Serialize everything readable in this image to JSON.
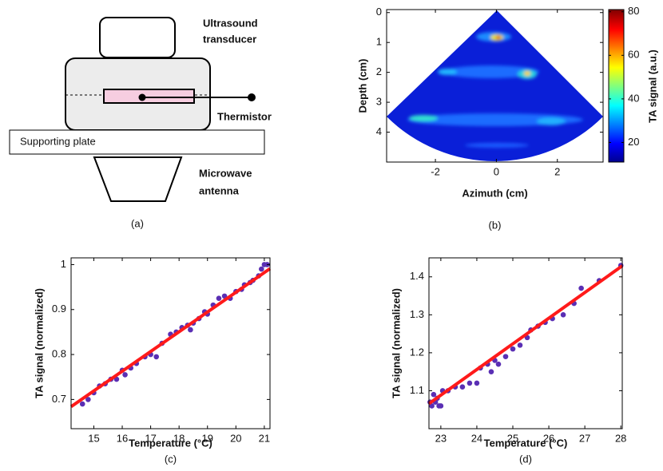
{
  "diagram": {
    "transducer_label": [
      "Ultrasound",
      "transducer"
    ],
    "thermistor_label": "Thermistor",
    "plate_label": "Supporting plate",
    "antenna_label": [
      "Microwave",
      "antenna"
    ],
    "caption": "(a)"
  },
  "chart_data": [
    {
      "type": "image",
      "xlabel": "Azimuth (cm)",
      "ylabel": "Depth (cm)",
      "caption": "(b)",
      "xlim": [
        -3.6,
        3.5
      ],
      "xticks": [
        -2,
        0,
        2
      ],
      "ylim": [
        -0.1,
        5
      ],
      "yticks": [
        0,
        1,
        2,
        3,
        4
      ],
      "y_reversed": true,
      "colorbar_label": "TA signal (a.u.)",
      "clim": [
        11,
        81
      ],
      "cticks": [
        20,
        40,
        60,
        80
      ],
      "colormap": "jet"
    },
    {
      "type": "scatter",
      "xlabel": "Temperature (°C)",
      "ylabel": "TA signal (normalized)",
      "caption": "(c)",
      "xlim": [
        14.2,
        21.2
      ],
      "xticks": [
        15,
        16,
        17,
        18,
        19,
        20,
        21
      ],
      "ylim": [
        0.635,
        1.015
      ],
      "yticks": [
        0.7,
        0.8,
        0.9,
        1
      ],
      "series": [
        {
          "mode": "markers",
          "color": "#5a2fb4",
          "x": [
            14.6,
            14.8,
            15.0,
            15.2,
            15.4,
            15.6,
            15.8,
            16.0,
            16.1,
            16.3,
            16.5,
            16.8,
            17.0,
            17.2,
            17.4,
            17.7,
            17.9,
            18.1,
            18.3,
            18.4,
            18.5,
            18.7,
            18.9,
            19.0,
            19.2,
            19.4,
            19.6,
            19.8,
            20.0,
            20.2,
            20.3,
            20.5,
            20.6,
            20.8,
            20.9,
            21.0,
            21.1
          ],
          "values": [
            0.69,
            0.7,
            0.715,
            0.73,
            0.735,
            0.745,
            0.745,
            0.765,
            0.755,
            0.77,
            0.78,
            0.795,
            0.8,
            0.795,
            0.825,
            0.845,
            0.85,
            0.86,
            0.865,
            0.855,
            0.87,
            0.88,
            0.895,
            0.89,
            0.91,
            0.925,
            0.93,
            0.925,
            0.94,
            0.945,
            0.955,
            0.96,
            0.965,
            0.975,
            0.99,
            1.0,
            1.0
          ]
        },
        {
          "mode": "line",
          "color": "#ff1a1a",
          "x": [
            14.2,
            21.2
          ],
          "values": [
            0.684,
            0.991
          ]
        }
      ]
    },
    {
      "type": "scatter",
      "xlabel": "Temperature (°C)",
      "ylabel": "TA signal (normalized)",
      "caption": "(d)",
      "xlim": [
        22.67,
        28.04
      ],
      "xticks": [
        23,
        24,
        25,
        26,
        27,
        28
      ],
      "ylim": [
        1.0,
        1.45
      ],
      "yticks": [
        1.1,
        1.2,
        1.3,
        1.4
      ],
      "series": [
        {
          "mode": "markers",
          "color": "#5a2fb4",
          "x": [
            22.7,
            22.75,
            22.8,
            22.85,
            22.9,
            22.95,
            23.0,
            23.05,
            23.2,
            23.4,
            23.6,
            23.8,
            24.0,
            24.1,
            24.3,
            24.4,
            24.5,
            24.6,
            24.8,
            25.0,
            25.2,
            25.4,
            25.5,
            25.7,
            25.9,
            26.1,
            26.4,
            26.7,
            26.9,
            27.4,
            28.0
          ],
          "values": [
            1.07,
            1.06,
            1.09,
            1.07,
            1.08,
            1.06,
            1.06,
            1.1,
            1.1,
            1.11,
            1.11,
            1.12,
            1.12,
            1.16,
            1.17,
            1.15,
            1.18,
            1.17,
            1.19,
            1.21,
            1.22,
            1.24,
            1.26,
            1.27,
            1.28,
            1.29,
            1.3,
            1.33,
            1.37,
            1.39,
            1.43
          ]
        },
        {
          "mode": "line",
          "color": "#ff1a1a",
          "x": [
            22.67,
            28.04
          ],
          "values": [
            1.066,
            1.429
          ]
        }
      ]
    }
  ]
}
